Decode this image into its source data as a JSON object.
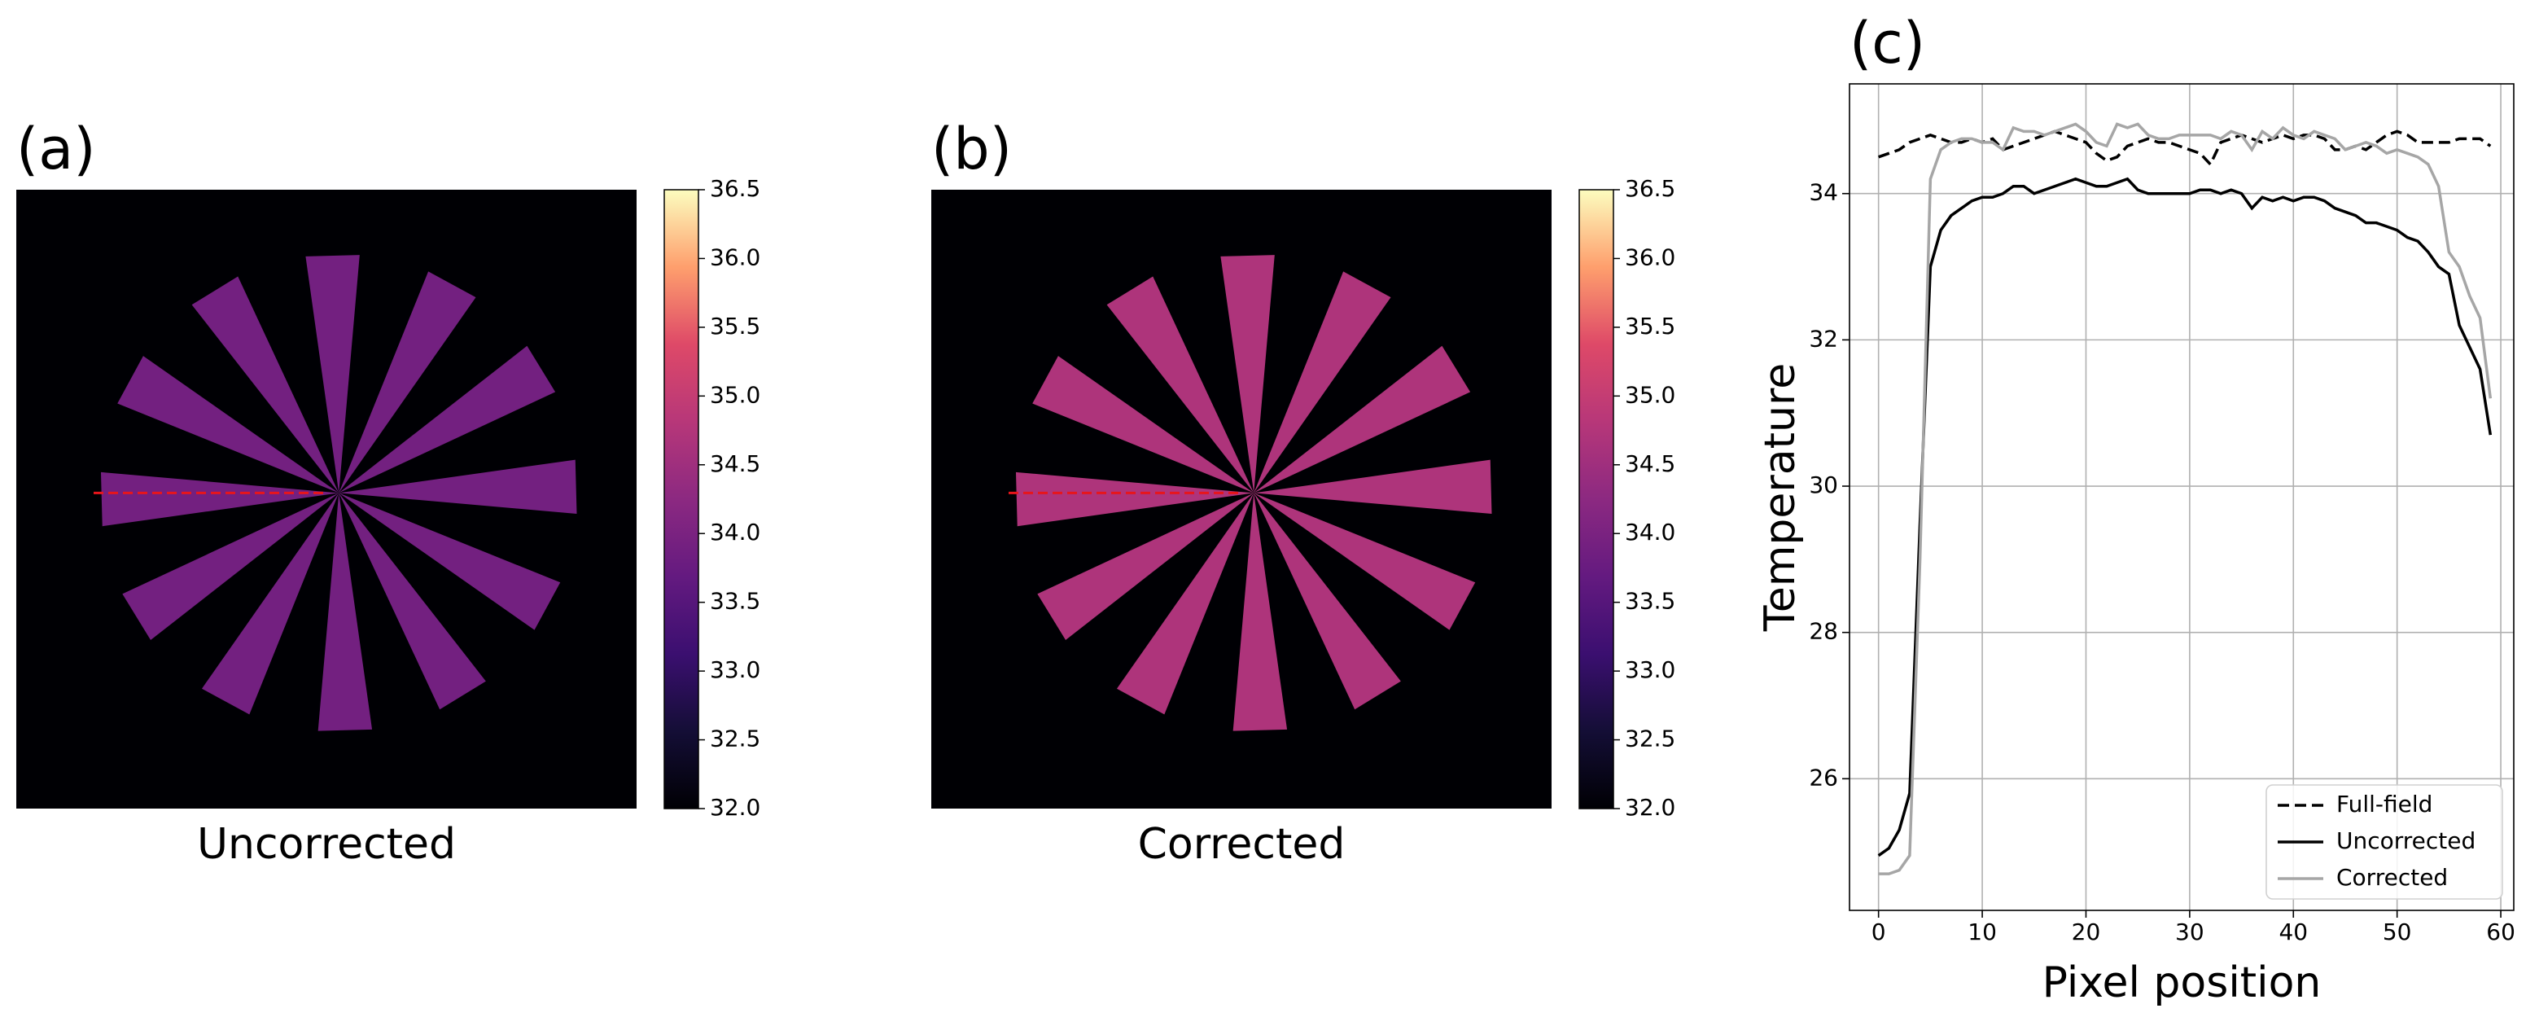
{
  "chart_data": [
    {
      "type": "image",
      "title": "(a)",
      "xlabel": "Uncorrected",
      "colormap": "magma",
      "background": 32.0,
      "values": [
        33.9,
        33.9,
        33.9,
        33.9,
        33.9,
        33.9,
        33.9,
        33.9,
        33.9,
        33.9,
        33.9,
        33.9
      ],
      "clim": [
        32.0,
        36.5
      ],
      "cticks": [
        {
          "value": 32,
          "label": "32.0"
        },
        {
          "value": 32.5,
          "label": "32.5"
        },
        {
          "value": 33,
          "label": "33.0"
        },
        {
          "value": 33.5,
          "label": "33.5"
        },
        {
          "value": 34,
          "label": "34.0"
        },
        {
          "value": 34.5,
          "label": "34.5"
        },
        {
          "value": 35,
          "label": "35.0"
        },
        {
          "value": 35.5,
          "label": "35.5"
        },
        {
          "value": 36,
          "label": "36.0"
        },
        {
          "value": 36.5,
          "label": "36.5"
        }
      ]
    },
    {
      "type": "image",
      "title": "(b)",
      "xlabel": "Corrected",
      "colormap": "magma",
      "background": 32.0,
      "values": [
        34.7,
        34.7,
        34.7,
        34.7,
        34.7,
        34.7,
        34.7,
        34.7,
        34.7,
        34.7,
        34.7,
        34.7
      ],
      "clim": [
        32.0,
        36.5
      ],
      "cticks": [
        {
          "value": 32,
          "label": "32.0"
        },
        {
          "value": 32.5,
          "label": "32.5"
        },
        {
          "value": 33,
          "label": "33.0"
        },
        {
          "value": 33.5,
          "label": "33.5"
        },
        {
          "value": 34,
          "label": "34.0"
        },
        {
          "value": 34.5,
          "label": "34.5"
        },
        {
          "value": 35,
          "label": "35.0"
        },
        {
          "value": 35.5,
          "label": "35.5"
        },
        {
          "value": 36,
          "label": "36.0"
        },
        {
          "value": 36.5,
          "label": "36.5"
        }
      ]
    },
    {
      "type": "line",
      "title": "(c)",
      "xlabel": "Pixel position",
      "ylabel": "Temperature",
      "x": [
        0,
        1,
        2,
        3,
        4,
        5,
        6,
        7,
        8,
        9,
        10,
        11,
        12,
        13,
        14,
        15,
        16,
        17,
        18,
        19,
        20,
        21,
        22,
        23,
        24,
        25,
        26,
        27,
        28,
        29,
        30,
        31,
        32,
        33,
        34,
        35,
        36,
        37,
        38,
        39,
        40,
        41,
        42,
        43,
        44,
        45,
        46,
        47,
        48,
        49,
        50,
        51,
        52,
        53,
        54,
        55,
        56,
        57,
        58,
        59
      ],
      "series": [
        {
          "name": "Full-field",
          "color": "#000000",
          "linestyle": "dashed",
          "values": [
            34.5,
            34.55,
            34.6,
            34.7,
            34.75,
            34.8,
            34.75,
            34.7,
            34.7,
            34.75,
            34.7,
            34.75,
            34.6,
            34.65,
            34.7,
            34.75,
            34.8,
            34.85,
            34.8,
            34.75,
            34.7,
            34.55,
            34.45,
            34.5,
            34.65,
            34.7,
            34.75,
            34.7,
            34.7,
            34.65,
            34.6,
            34.55,
            34.4,
            34.7,
            34.75,
            34.8,
            34.75,
            34.7,
            34.75,
            34.8,
            34.75,
            34.8,
            34.8,
            34.75,
            34.6,
            34.6,
            34.65,
            34.6,
            34.7,
            34.8,
            34.85,
            34.8,
            34.7,
            34.7,
            34.7,
            34.7,
            34.75,
            34.75,
            34.75,
            34.65
          ]
        },
        {
          "name": "Uncorrected",
          "color": "#000000",
          "linestyle": "solid",
          "values": [
            24.95,
            25.05,
            25.3,
            25.8,
            29.5,
            33.0,
            33.5,
            33.7,
            33.8,
            33.9,
            33.95,
            33.95,
            34.0,
            34.1,
            34.1,
            34.0,
            34.05,
            34.1,
            34.15,
            34.2,
            34.15,
            34.1,
            34.1,
            34.15,
            34.2,
            34.05,
            34.0,
            34.0,
            34.0,
            34.0,
            34.0,
            34.05,
            34.05,
            34.0,
            34.05,
            34.0,
            33.8,
            33.95,
            33.9,
            33.95,
            33.9,
            33.95,
            33.95,
            33.9,
            33.8,
            33.75,
            33.7,
            33.6,
            33.6,
            33.55,
            33.5,
            33.4,
            33.35,
            33.2,
            33.0,
            32.9,
            32.2,
            31.9,
            31.6,
            30.7
          ]
        },
        {
          "name": "Corrected",
          "color": "#a6a6a6",
          "linestyle": "solid",
          "values": [
            24.7,
            24.7,
            24.75,
            24.95,
            29.0,
            34.2,
            34.6,
            34.7,
            34.75,
            34.75,
            34.7,
            34.7,
            34.6,
            34.9,
            34.85,
            34.85,
            34.8,
            34.85,
            34.9,
            34.95,
            34.85,
            34.7,
            34.65,
            34.95,
            34.9,
            34.95,
            34.8,
            34.75,
            34.75,
            34.8,
            34.8,
            34.8,
            34.8,
            34.75,
            34.85,
            34.8,
            34.6,
            34.85,
            34.75,
            34.9,
            34.8,
            34.75,
            34.85,
            34.8,
            34.75,
            34.6,
            34.65,
            34.7,
            34.65,
            34.55,
            34.6,
            34.55,
            34.5,
            34.4,
            34.1,
            33.2,
            33.0,
            32.6,
            32.3,
            31.2
          ]
        }
      ],
      "xlim": [
        -2.8,
        61.25
      ],
      "ylim": [
        24.2,
        35.5
      ],
      "xticks": [
        0,
        10,
        20,
        30,
        40,
        50,
        60
      ],
      "yticks": [
        26,
        28,
        30,
        32,
        34
      ],
      "grid": true,
      "legend": "lower right"
    }
  ]
}
